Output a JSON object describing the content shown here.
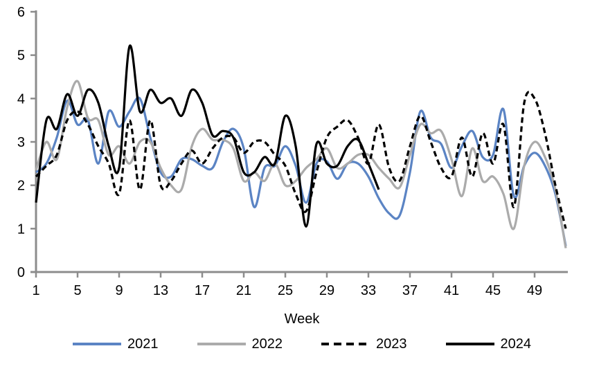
{
  "chart_data": {
    "type": "line",
    "title": "",
    "xlabel": "Week",
    "ylabel": "",
    "xlim": [
      1,
      52
    ],
    "ylim": [
      0,
      6
    ],
    "grid": false,
    "legend_position": "bottom",
    "x_ticks": [
      1,
      5,
      9,
      13,
      17,
      21,
      25,
      29,
      33,
      37,
      41,
      45,
      49
    ],
    "y_ticks": [
      0,
      1,
      2,
      3,
      4,
      5,
      6
    ],
    "x": [
      1,
      2,
      3,
      4,
      5,
      6,
      7,
      8,
      9,
      10,
      11,
      12,
      13,
      14,
      15,
      16,
      17,
      18,
      19,
      20,
      21,
      22,
      23,
      24,
      25,
      26,
      27,
      28,
      29,
      30,
      31,
      32,
      33,
      34,
      35,
      36,
      37,
      38,
      39,
      40,
      41,
      42,
      43,
      44,
      45,
      46,
      47,
      48,
      49,
      50,
      51,
      52
    ],
    "series": [
      {
        "name": "2021",
        "color": "#5B84C4",
        "style": "solid",
        "values": [
          2.3,
          2.5,
          3.1,
          3.95,
          3.4,
          3.5,
          2.5,
          3.7,
          3.35,
          3.7,
          4.0,
          3.1,
          2.3,
          2.2,
          2.6,
          2.6,
          2.45,
          2.4,
          3.0,
          3.3,
          2.85,
          1.5,
          2.4,
          2.45,
          2.9,
          2.45,
          1.6,
          2.5,
          2.55,
          2.15,
          2.5,
          2.5,
          2.2,
          1.7,
          1.35,
          1.3,
          2.3,
          3.7,
          3.1,
          2.95,
          2.4,
          2.9,
          3.25,
          2.65,
          2.7,
          3.75,
          1.75,
          2.45,
          2.75,
          2.45,
          1.8,
          0.6
        ]
      },
      {
        "name": "2022",
        "color": "#ABABAB",
        "style": "solid",
        "values": [
          2.35,
          3.0,
          2.6,
          3.8,
          4.4,
          3.55,
          3.5,
          2.7,
          2.9,
          2.5,
          3.0,
          3.0,
          2.4,
          2.0,
          1.9,
          2.9,
          3.3,
          3.05,
          3.05,
          2.85,
          2.1,
          2.3,
          2.1,
          2.5,
          2.0,
          2.1,
          2.4,
          2.6,
          2.85,
          2.4,
          2.5,
          2.7,
          2.7,
          2.4,
          2.15,
          1.95,
          2.7,
          3.4,
          3.2,
          3.25,
          2.6,
          1.75,
          2.85,
          2.1,
          2.2,
          1.8,
          1.0,
          2.45,
          3.0,
          2.65,
          1.9,
          0.55
        ]
      },
      {
        "name": "2023",
        "color": "#000000",
        "style": "dashed",
        "values": [
          2.2,
          2.45,
          2.7,
          3.5,
          3.7,
          3.4,
          2.9,
          2.5,
          1.8,
          3.5,
          1.9,
          3.5,
          2.0,
          2.1,
          2.5,
          2.8,
          2.5,
          2.85,
          3.1,
          3.1,
          2.75,
          3.0,
          3.0,
          2.7,
          2.45,
          1.8,
          1.4,
          2.3,
          3.1,
          3.35,
          3.5,
          3.1,
          2.5,
          3.4,
          2.4,
          2.1,
          2.9,
          3.6,
          3.0,
          2.4,
          2.2,
          3.1,
          2.2,
          3.2,
          2.5,
          3.4,
          1.5,
          3.9,
          4.0,
          3.2,
          2.0,
          1.0
        ]
      },
      {
        "name": "2024",
        "color": "#000000",
        "style": "solid",
        "values": [
          1.6,
          3.5,
          3.3,
          4.1,
          3.6,
          4.2,
          3.9,
          2.9,
          2.4,
          5.2,
          3.7,
          4.2,
          3.9,
          4.0,
          3.6,
          4.2,
          3.9,
          3.15,
          3.25,
          3.1,
          2.3,
          2.3,
          2.65,
          2.5,
          3.6,
          2.9,
          1.05,
          2.95,
          2.5,
          2.45,
          2.9,
          3.05,
          2.5,
          1.9
        ]
      }
    ]
  },
  "axis": {
    "color": "#8C8C8C",
    "text_color": "#000000"
  }
}
